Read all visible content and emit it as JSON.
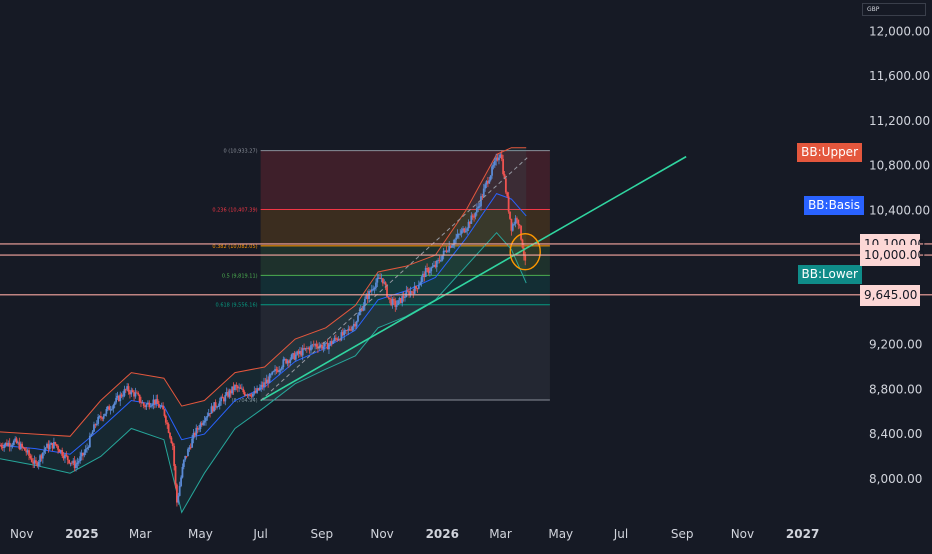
{
  "currency": "GBP",
  "colors": {
    "background": "#161a25",
    "candle_up": "#5b8bd6",
    "candle_down": "#ef5350",
    "bb_band": "#e4573d",
    "bb_basis": "#2962ff",
    "bb_lower_line": "#26a69a",
    "trendline": "#30d5a0",
    "hline": "#f7a7a1",
    "fib_0": "#8a8f99",
    "fib_0236": "#f23645",
    "fib_0382": "#ff9800",
    "fib_05": "#4caf50",
    "fib_0618": "#089981",
    "circle": "#ff9800"
  },
  "tags": {
    "bb_upper": "BB:Upper",
    "bb_basis": "BB:Basis",
    "bb_lower": "BB:Lower"
  },
  "price_tags": [
    "10,100.00",
    "10,000.00",
    "9,645.00"
  ],
  "chart_data": {
    "type": "candlestick",
    "title": "",
    "xlabel": "",
    "ylabel": "",
    "x_ticks": [
      {
        "label": "Nov",
        "date": "2024-11-01",
        "bold": false
      },
      {
        "label": "2025",
        "date": "2025-01-01",
        "bold": true
      },
      {
        "label": "Mar",
        "date": "2025-03-01",
        "bold": false
      },
      {
        "label": "May",
        "date": "2025-05-01",
        "bold": false
      },
      {
        "label": "Jul",
        "date": "2025-07-01",
        "bold": false
      },
      {
        "label": "Sep",
        "date": "2025-09-01",
        "bold": false
      },
      {
        "label": "Nov",
        "date": "2025-11-01",
        "bold": false
      },
      {
        "label": "2026",
        "date": "2026-01-01",
        "bold": true
      },
      {
        "label": "Mar",
        "date": "2026-03-01",
        "bold": false
      },
      {
        "label": "May",
        "date": "2026-05-01",
        "bold": false
      },
      {
        "label": "Jul",
        "date": "2026-07-01",
        "bold": false
      },
      {
        "label": "Sep",
        "date": "2026-09-01",
        "bold": false
      },
      {
        "label": "Nov",
        "date": "2026-11-01",
        "bold": false
      },
      {
        "label": "2027",
        "date": "2027-01-01",
        "bold": true
      }
    ],
    "y_ticks": [
      {
        "label": "12,000.00",
        "value": 12000
      },
      {
        "label": "11,600.00",
        "value": 11600
      },
      {
        "label": "11,200.00",
        "value": 11200
      },
      {
        "label": "10,800.00",
        "value": 10800
      },
      {
        "label": "10,400.00",
        "value": 10400
      },
      {
        "label": "9,200.00",
        "value": 9200
      },
      {
        "label": "8,800.00",
        "value": 8800
      },
      {
        "label": "8,400.00",
        "value": 8400
      },
      {
        "label": "8,000.00",
        "value": 8000
      }
    ],
    "ylim": [
      7650,
      12280
    ],
    "xlim": [
      "2024-10-10",
      "2027-02-20"
    ],
    "price_path": [
      [
        "2024-10-10",
        8300
      ],
      [
        "2024-10-25",
        8330
      ],
      [
        "2024-11-05",
        8250
      ],
      [
        "2024-11-15",
        8120
      ],
      [
        "2024-11-25",
        8280
      ],
      [
        "2024-12-05",
        8310
      ],
      [
        "2024-12-15",
        8200
      ],
      [
        "2024-12-25",
        8120
      ],
      [
        "2025-01-05",
        8250
      ],
      [
        "2025-01-15",
        8500
      ],
      [
        "2025-01-25",
        8600
      ],
      [
        "2025-02-05",
        8700
      ],
      [
        "2025-02-15",
        8800
      ],
      [
        "2025-02-25",
        8750
      ],
      [
        "2025-03-05",
        8650
      ],
      [
        "2025-03-15",
        8700
      ],
      [
        "2025-03-25",
        8600
      ],
      [
        "2025-04-03",
        8300
      ],
      [
        "2025-04-07",
        7780
      ],
      [
        "2025-04-14",
        8150
      ],
      [
        "2025-04-25",
        8400
      ],
      [
        "2025-05-05",
        8550
      ],
      [
        "2025-05-15",
        8650
      ],
      [
        "2025-05-25",
        8720
      ],
      [
        "2025-06-05",
        8820
      ],
      [
        "2025-06-15",
        8770
      ],
      [
        "2025-06-25",
        8760
      ],
      [
        "2025-07-05",
        8850
      ],
      [
        "2025-07-15",
        8950
      ],
      [
        "2025-07-25",
        9050
      ],
      [
        "2025-08-05",
        9100
      ],
      [
        "2025-08-15",
        9150
      ],
      [
        "2025-08-25",
        9200
      ],
      [
        "2025-09-05",
        9180
      ],
      [
        "2025-09-15",
        9250
      ],
      [
        "2025-09-25",
        9300
      ],
      [
        "2025-10-05",
        9400
      ],
      [
        "2025-10-15",
        9600
      ],
      [
        "2025-10-25",
        9750
      ],
      [
        "2025-11-01",
        9800
      ],
      [
        "2025-11-08",
        9600
      ],
      [
        "2025-11-15",
        9550
      ],
      [
        "2025-11-25",
        9650
      ],
      [
        "2025-12-05",
        9700
      ],
      [
        "2025-12-15",
        9850
      ],
      [
        "2025-12-25",
        9900
      ],
      [
        "2026-01-05",
        10050
      ],
      [
        "2026-01-15",
        10150
      ],
      [
        "2026-01-25",
        10250
      ],
      [
        "2026-02-05",
        10400
      ],
      [
        "2026-02-15",
        10650
      ],
      [
        "2026-02-25",
        10850
      ],
      [
        "2026-03-01",
        10930
      ],
      [
        "2026-03-06",
        10600
      ],
      [
        "2026-03-12",
        10250
      ],
      [
        "2026-03-18",
        10350
      ],
      [
        "2026-03-24",
        10050
      ],
      [
        "2026-03-27",
        9850
      ]
    ],
    "bollinger_bands": {
      "upper": [
        [
          "2024-10-10",
          8420
        ],
        [
          "2024-11-15",
          8400
        ],
        [
          "2024-12-20",
          8380
        ],
        [
          "2025-01-20",
          8700
        ],
        [
          "2025-02-20",
          8950
        ],
        [
          "2025-03-25",
          8900
        ],
        [
          "2025-04-12",
          8650
        ],
        [
          "2025-05-05",
          8700
        ],
        [
          "2025-06-05",
          8950
        ],
        [
          "2025-07-05",
          9000
        ],
        [
          "2025-08-05",
          9250
        ],
        [
          "2025-09-05",
          9350
        ],
        [
          "2025-10-05",
          9550
        ],
        [
          "2025-10-28",
          9850
        ],
        [
          "2025-11-25",
          9900
        ],
        [
          "2025-12-25",
          10000
        ],
        [
          "2026-01-25",
          10400
        ],
        [
          "2026-02-25",
          10900
        ],
        [
          "2026-03-12",
          10960
        ],
        [
          "2026-03-27",
          10960
        ]
      ],
      "basis": [
        [
          "2024-10-10",
          8300
        ],
        [
          "2024-11-15",
          8270
        ],
        [
          "2024-12-20",
          8220
        ],
        [
          "2025-01-20",
          8450
        ],
        [
          "2025-02-20",
          8700
        ],
        [
          "2025-03-25",
          8650
        ],
        [
          "2025-04-12",
          8350
        ],
        [
          "2025-05-05",
          8400
        ],
        [
          "2025-06-05",
          8700
        ],
        [
          "2025-07-05",
          8820
        ],
        [
          "2025-08-05",
          9050
        ],
        [
          "2025-09-05",
          9170
        ],
        [
          "2025-10-05",
          9330
        ],
        [
          "2025-10-28",
          9600
        ],
        [
          "2025-11-25",
          9680
        ],
        [
          "2025-12-25",
          9800
        ],
        [
          "2026-01-25",
          10150
        ],
        [
          "2026-02-25",
          10550
        ],
        [
          "2026-03-12",
          10500
        ],
        [
          "2026-03-27",
          10350
        ]
      ],
      "lower": [
        [
          "2024-10-10",
          8180
        ],
        [
          "2024-11-15",
          8120
        ],
        [
          "2024-12-20",
          8050
        ],
        [
          "2025-01-20",
          8200
        ],
        [
          "2025-02-20",
          8450
        ],
        [
          "2025-03-25",
          8350
        ],
        [
          "2025-04-12",
          7700
        ],
        [
          "2025-05-05",
          8050
        ],
        [
          "2025-06-05",
          8450
        ],
        [
          "2025-07-05",
          8640
        ],
        [
          "2025-08-05",
          8850
        ],
        [
          "2025-09-05",
          8980
        ],
        [
          "2025-10-05",
          9100
        ],
        [
          "2025-10-28",
          9350
        ],
        [
          "2025-11-25",
          9450
        ],
        [
          "2025-12-25",
          9600
        ],
        [
          "2026-01-25",
          9900
        ],
        [
          "2026-02-25",
          10200
        ],
        [
          "2026-03-12",
          10050
        ],
        [
          "2026-03-27",
          9750
        ]
      ]
    },
    "fibonacci_retracement": {
      "start_date": "2025-07-01",
      "end_date": "2026-04-20",
      "levels": [
        {
          "ratio": 0,
          "label": "0 (10,933.27)",
          "value": 10933.27
        },
        {
          "ratio": 0.236,
          "label": "0.236 (10,407.39)",
          "value": 10407.39
        },
        {
          "ratio": 0.382,
          "label": "0.382 (10,082.05)",
          "value": 10082.05
        },
        {
          "ratio": 0.5,
          "label": "0.5 (9,819.11)",
          "value": 9819.11
        },
        {
          "ratio": 0.618,
          "label": "0.618 (9,556.16)",
          "value": 9556.16
        },
        {
          "ratio": 1,
          "label": "(8,704.94)",
          "value": 8704.94
        }
      ]
    },
    "trendline": {
      "from": [
        "2025-07-01",
        8700
      ],
      "to": [
        "2026-09-05",
        10880
      ]
    },
    "projection_line": {
      "from": [
        "2025-07-01",
        8700
      ],
      "to": [
        "2026-03-28",
        10870
      ]
    },
    "horizontal_lines": [
      {
        "value": 10100,
        "label": "10,100.00"
      },
      {
        "value": 10000,
        "label": "10,000.00"
      },
      {
        "value": 9645,
        "label": "9,645.00"
      }
    ],
    "circle_marker": {
      "date": "2026-03-26",
      "value": 10030
    },
    "bb_tag_values": {
      "upper": 10930,
      "basis": 10420,
      "lower": 9820
    }
  }
}
